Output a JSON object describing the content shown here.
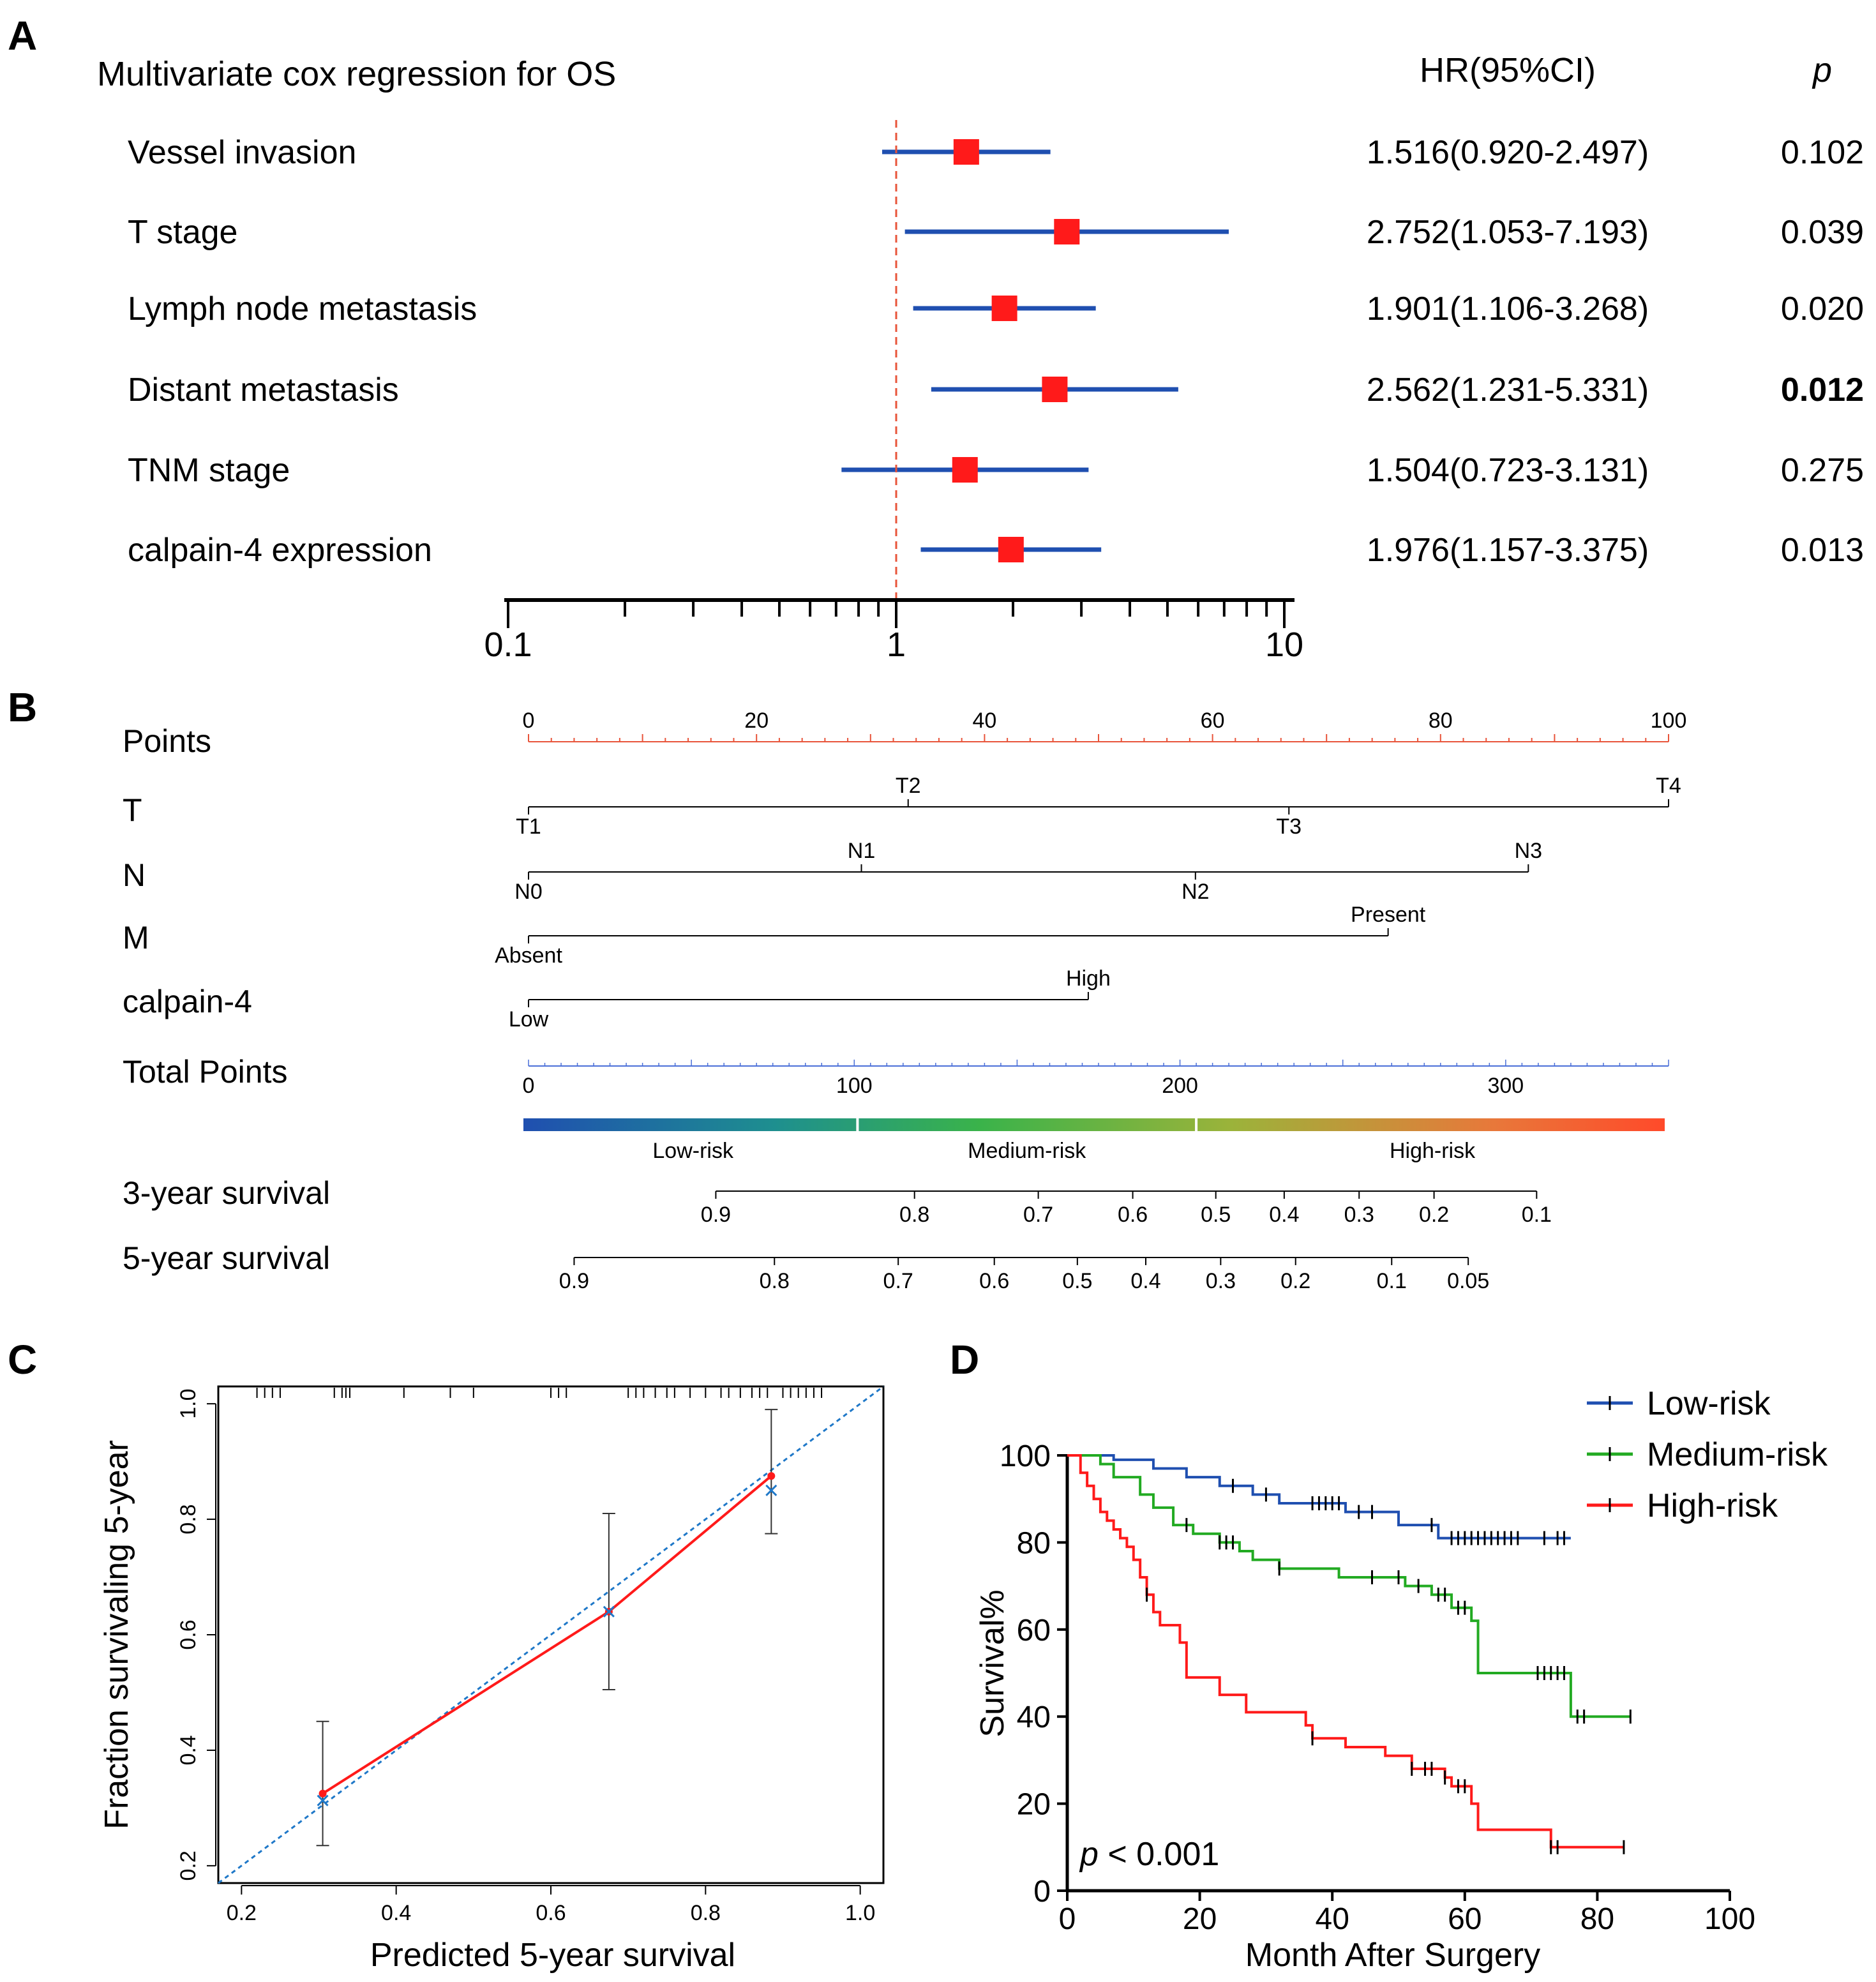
{
  "colors": {
    "hr_box": "#ff1a1a",
    "ci_line": "#1f4fb0",
    "ref_line": "#e8543a",
    "points_axis": "#e8543a",
    "total_axis": "#4a6fd8",
    "low_risk": "#1f4fb0",
    "medium_risk": "#22aa22",
    "high_risk": "#ff1a1a",
    "cal_observed": "#ff1a1a",
    "cal_ideal": "#1f78c8",
    "gradient": [
      "#1f4fb0",
      "#1e8f8f",
      "#3ab34a",
      "#9bb33a",
      "#e8783a",
      "#ff4a2a"
    ]
  },
  "panel_labels": [
    "A",
    "B",
    "C",
    "D"
  ],
  "panel_a": {
    "title": "Multivariate cox regression for OS",
    "col_hr": "HR(95%CI)",
    "col_p": "p",
    "axis_ticks": [
      "0.1",
      "1",
      "10"
    ]
  },
  "panel_b": {
    "rows": [
      "Points",
      "T",
      "N",
      "M",
      "calpain-4",
      "Total Points",
      "3-year survival",
      "5-year survival"
    ],
    "risk_labels": [
      "Low-risk",
      "Medium-risk",
      "High-risk"
    ]
  },
  "panel_c": {
    "xlabel": "Predicted 5-year survival",
    "ylabel": "Fraction survivaling 5-year"
  },
  "panel_d": {
    "ylabel": "Survival%",
    "xlabel": "Month After Surgery",
    "pvalue_symbol": "p",
    "pvalue_text": " < 0.001",
    "legend": [
      "Low-risk",
      "Medium-risk",
      "High-risk"
    ]
  },
  "chart_data": [
    {
      "type": "forest",
      "panel": "A",
      "title": "Multivariate cox regression for OS",
      "xscale": "log",
      "xlim": [
        0.1,
        10
      ],
      "reference": 1,
      "rows": [
        {
          "label": "Vessel invasion",
          "hr": 1.516,
          "lo": 0.92,
          "hi": 2.497,
          "hr_text": "1.516(0.920-2.497)",
          "p": "0.102"
        },
        {
          "label": "T stage",
          "hr": 2.752,
          "lo": 1.053,
          "hi": 7.193,
          "hr_text": "2.752(1.053-7.193)",
          "p": "0.039"
        },
        {
          "label": "Lymph node metastasis",
          "hr": 1.901,
          "lo": 1.106,
          "hi": 3.268,
          "hr_text": "1.901(1.106-3.268)",
          "p": "0.020"
        },
        {
          "label": "Distant metastasis",
          "hr": 2.562,
          "lo": 1.231,
          "hi": 5.331,
          "hr_text": "2.562(1.231-5.331)",
          "p": "0.012"
        },
        {
          "label": "TNM stage",
          "hr": 1.504,
          "lo": 0.723,
          "hi": 3.131,
          "hr_text": "1.504(0.723-3.131)",
          "p": "0.275"
        },
        {
          "label": "calpain-4 expression",
          "hr": 1.976,
          "lo": 1.157,
          "hi": 3.375,
          "hr_text": "1.976(1.157-3.375)",
          "p": "0.013"
        }
      ]
    },
    {
      "type": "nomogram",
      "panel": "B",
      "points_ticks": [
        "0",
        "20",
        "40",
        "60",
        "80",
        "100"
      ],
      "variables": [
        {
          "name": "T",
          "end": 100,
          "levels": [
            {
              "label": "T1",
              "points": 0,
              "side": "below"
            },
            {
              "label": "T2",
              "points": 33.3,
              "side": "above"
            },
            {
              "label": "T3",
              "points": 66.7,
              "side": "below"
            },
            {
              "label": "T4",
              "points": 100,
              "side": "above"
            }
          ]
        },
        {
          "name": "N",
          "end": 87.7,
          "levels": [
            {
              "label": "N0",
              "points": 0,
              "side": "below"
            },
            {
              "label": "N1",
              "points": 29.2,
              "side": "above"
            },
            {
              "label": "N2",
              "points": 58.5,
              "side": "below"
            },
            {
              "label": "N3",
              "points": 87.7,
              "side": "above"
            }
          ]
        },
        {
          "name": "M",
          "end": 75.4,
          "levels": [
            {
              "label": "Absent",
              "points": 0,
              "side": "below"
            },
            {
              "label": "Present",
              "points": 75.4,
              "side": "above"
            }
          ]
        },
        {
          "name": "calpain-4",
          "end": 49.1,
          "levels": [
            {
              "label": "Low",
              "points": 0,
              "side": "below"
            },
            {
              "label": "High",
              "points": 49.1,
              "side": "above"
            }
          ]
        }
      ],
      "total_points": {
        "max": 350,
        "ticks": [
          "0",
          "100",
          "200",
          "300"
        ]
      },
      "risk_groups": [
        {
          "label": "Low-risk",
          "from": 0,
          "to": 101
        },
        {
          "label": "Medium-risk",
          "from": 101,
          "to": 205
        },
        {
          "label": "High-risk",
          "from": 205,
          "to": 350
        }
      ],
      "survival_3yr": {
        "start": 57.5,
        "end": 309.5,
        "ticks": [
          {
            "label": "0.9",
            "total": 57.5
          },
          {
            "label": "0.8",
            "total": 118.5
          },
          {
            "label": "0.7",
            "total": 156.5
          },
          {
            "label": "0.6",
            "total": 185.5
          },
          {
            "label": "0.5",
            "total": 211
          },
          {
            "label": "0.4",
            "total": 232
          },
          {
            "label": "0.3",
            "total": 255
          },
          {
            "label": "0.2",
            "total": 278
          },
          {
            "label": "0.1",
            "total": 309.5
          }
        ]
      },
      "survival_5yr": {
        "start": 14,
        "end": 288.5,
        "ticks": [
          {
            "label": "0.9",
            "total": 14
          },
          {
            "label": "0.8",
            "total": 75.5
          },
          {
            "label": "0.7",
            "total": 113.5
          },
          {
            "label": "0.6",
            "total": 143
          },
          {
            "label": "0.5",
            "total": 168.5
          },
          {
            "label": "0.4",
            "total": 189.5
          },
          {
            "label": "0.3",
            "total": 212.5
          },
          {
            "label": "0.2",
            "total": 235.5
          },
          {
            "label": "0.1",
            "total": 265
          },
          {
            "label": "0.05",
            "total": 288.5
          }
        ]
      }
    },
    {
      "type": "calibration",
      "panel": "C",
      "xlabel": "Predicted 5-year survival",
      "ylabel": "Fraction survivaling 5-year",
      "xlim": [
        0.17,
        1.03
      ],
      "ylim": [
        0.17,
        1.03
      ],
      "xticks": [
        "0.2",
        "0.4",
        "0.6",
        "0.8",
        "1.0"
      ],
      "yticks": [
        "0.2",
        "0.4",
        "0.6",
        "0.8",
        "1.0"
      ],
      "observed": [
        {
          "x": 0.305,
          "y": 0.325,
          "x_corrected": 0.313,
          "lo": 0.235,
          "hi": 0.45
        },
        {
          "x": 0.675,
          "y": 0.64,
          "x_corrected": 0.64,
          "lo": 0.505,
          "hi": 0.81
        },
        {
          "x": 0.885,
          "y": 0.875,
          "x_corrected": 0.85,
          "lo": 0.775,
          "hi": 0.99
        }
      ],
      "rug_x": [
        0.22,
        0.23,
        0.24,
        0.25,
        0.32,
        0.33,
        0.335,
        0.34,
        0.41,
        0.47,
        0.5,
        0.6,
        0.61,
        0.62,
        0.7,
        0.71,
        0.72,
        0.735,
        0.75,
        0.76,
        0.78,
        0.8,
        0.82,
        0.83,
        0.845,
        0.86,
        0.87,
        0.88,
        0.9,
        0.91,
        0.92,
        0.93,
        0.94,
        0.95
      ]
    },
    {
      "type": "km",
      "panel": "D",
      "xlabel": "Month After Surgery",
      "ylabel": "Survival%",
      "xlim": [
        0,
        100
      ],
      "ylim": [
        0,
        100
      ],
      "xticks": [
        "0",
        "20",
        "40",
        "60",
        "80",
        "100"
      ],
      "yticks": [
        "0",
        "20",
        "40",
        "60",
        "80",
        "100"
      ],
      "pvalue": "p < 0.001",
      "series": [
        {
          "name": "Low-risk",
          "steps": [
            [
              0,
              100
            ],
            [
              7,
              99
            ],
            [
              13,
              97
            ],
            [
              18,
              95
            ],
            [
              23,
              93
            ],
            [
              28,
              91
            ],
            [
              32,
              89
            ],
            [
              42,
              87
            ],
            [
              50,
              84
            ],
            [
              56,
              81
            ],
            [
              76,
              81
            ]
          ],
          "censor": [
            25,
            30,
            37,
            38,
            39,
            40,
            41,
            44,
            46,
            55,
            58,
            59,
            60,
            61,
            62,
            63,
            64,
            65,
            66,
            67,
            68,
            72,
            74,
            75
          ]
        },
        {
          "name": "Medium-risk",
          "steps": [
            [
              0,
              100
            ],
            [
              5,
              98
            ],
            [
              7,
              95
            ],
            [
              11,
              91
            ],
            [
              13,
              88
            ],
            [
              16,
              84
            ],
            [
              19,
              82
            ],
            [
              23,
              80
            ],
            [
              26,
              78
            ],
            [
              28,
              76
            ],
            [
              32,
              74
            ],
            [
              41,
              72
            ],
            [
              51,
              70
            ],
            [
              55,
              68
            ],
            [
              58,
              65
            ],
            [
              61,
              62
            ],
            [
              62,
              50
            ],
            [
              76,
              40
            ],
            [
              85,
              40
            ]
          ],
          "censor": [
            18,
            23,
            24,
            25,
            32,
            46,
            50,
            53,
            56,
            57,
            59,
            60,
            71,
            72,
            73,
            74,
            75,
            77,
            78,
            85
          ]
        },
        {
          "name": "High-risk",
          "steps": [
            [
              0,
              100
            ],
            [
              2,
              96
            ],
            [
              3,
              93
            ],
            [
              4,
              90
            ],
            [
              5,
              87
            ],
            [
              6,
              85
            ],
            [
              7,
              83
            ],
            [
              8,
              81
            ],
            [
              9,
              79
            ],
            [
              10,
              76
            ],
            [
              11,
              72
            ],
            [
              12,
              68
            ],
            [
              13,
              64
            ],
            [
              14,
              61
            ],
            [
              17,
              57
            ],
            [
              18,
              49
            ],
            [
              23,
              45
            ],
            [
              27,
              41
            ],
            [
              36,
              38
            ],
            [
              37,
              35
            ],
            [
              42,
              33
            ],
            [
              48,
              31
            ],
            [
              52,
              28
            ],
            [
              57,
              26
            ],
            [
              58,
              24
            ],
            [
              61,
              20
            ],
            [
              62,
              14
            ],
            [
              73,
              10
            ],
            [
              84,
              10
            ]
          ],
          "censor": [
            12,
            37,
            52,
            54,
            55,
            57,
            59,
            60,
            73,
            74,
            84
          ]
        }
      ]
    }
  ]
}
